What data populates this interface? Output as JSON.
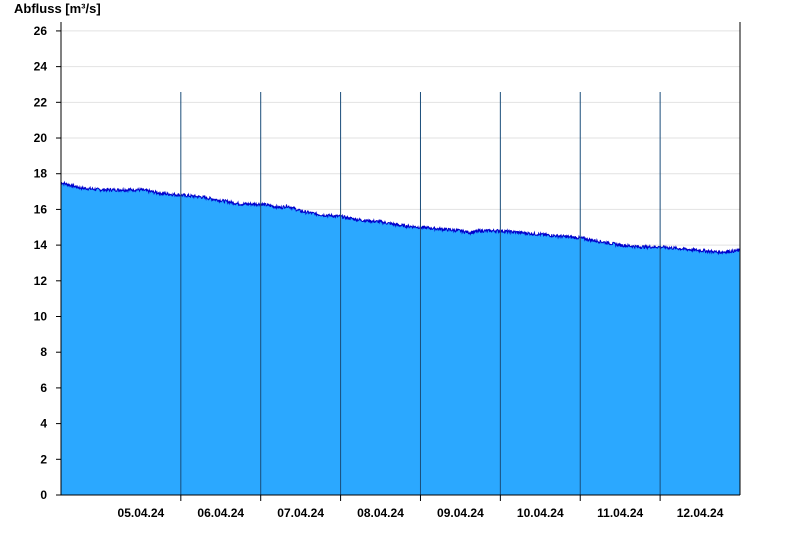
{
  "chart_data": {
    "type": "area",
    "title": "",
    "ylabel": "Abfluss [m³/s]",
    "xlabel": "",
    "ylim": [
      0,
      26.5
    ],
    "yticks": [
      0,
      2,
      4,
      6,
      8,
      10,
      12,
      14,
      16,
      18,
      20,
      22,
      24,
      26
    ],
    "x_day_labels": [
      "05.04.24",
      "06.04.24",
      "07.04.24",
      "08.04.24",
      "09.04.24",
      "10.04.24",
      "11.04.24",
      "12.04.24"
    ],
    "x_range": [
      "04.04.24 12:00",
      "12.04.24 24:00"
    ],
    "grid": true,
    "fill_color": "#2ba8ff",
    "line_color": "#0000cc",
    "series": [
      {
        "x": [
          "04.04.24 12:00",
          "04.04.24 18:00",
          "05.04.24 00:00",
          "05.04.24 06:00",
          "05.04.24 12:00",
          "05.04.24 18:00",
          "06.04.24 00:00",
          "06.04.24 06:00",
          "06.04.24 12:00",
          "06.04.24 18:00",
          "07.04.24 00:00",
          "07.04.24 06:00",
          "07.04.24 08:00",
          "07.04.24 12:00",
          "07.04.24 18:00",
          "08.04.24 00:00",
          "08.04.24 06:00",
          "08.04.24 12:00",
          "08.04.24 18:00",
          "09.04.24 00:00",
          "09.04.24 06:00",
          "09.04.24 12:00",
          "09.04.24 15:00",
          "09.04.24 18:00",
          "10.04.24 00:00",
          "10.04.24 06:00",
          "10.04.24 12:00",
          "10.04.24 18:00",
          "11.04.24 00:00",
          "11.04.24 06:00",
          "11.04.24 12:00",
          "11.04.24 18:00",
          "12.04.24 00:00",
          "12.04.24 06:00",
          "12.04.24 12:00",
          "12.04.24 18:00",
          "12.04.24 24:00"
        ],
        "y": [
          17.5,
          17.2,
          17.1,
          17.1,
          17.1,
          16.9,
          16.8,
          16.7,
          16.5,
          16.3,
          16.3,
          16.1,
          16.2,
          15.9,
          15.7,
          15.6,
          15.4,
          15.3,
          15.1,
          15.0,
          14.9,
          14.8,
          14.7,
          14.8,
          14.8,
          14.7,
          14.6,
          14.5,
          14.4,
          14.2,
          14.0,
          13.9,
          13.9,
          13.8,
          13.7,
          13.6,
          13.7
        ]
      }
    ]
  }
}
